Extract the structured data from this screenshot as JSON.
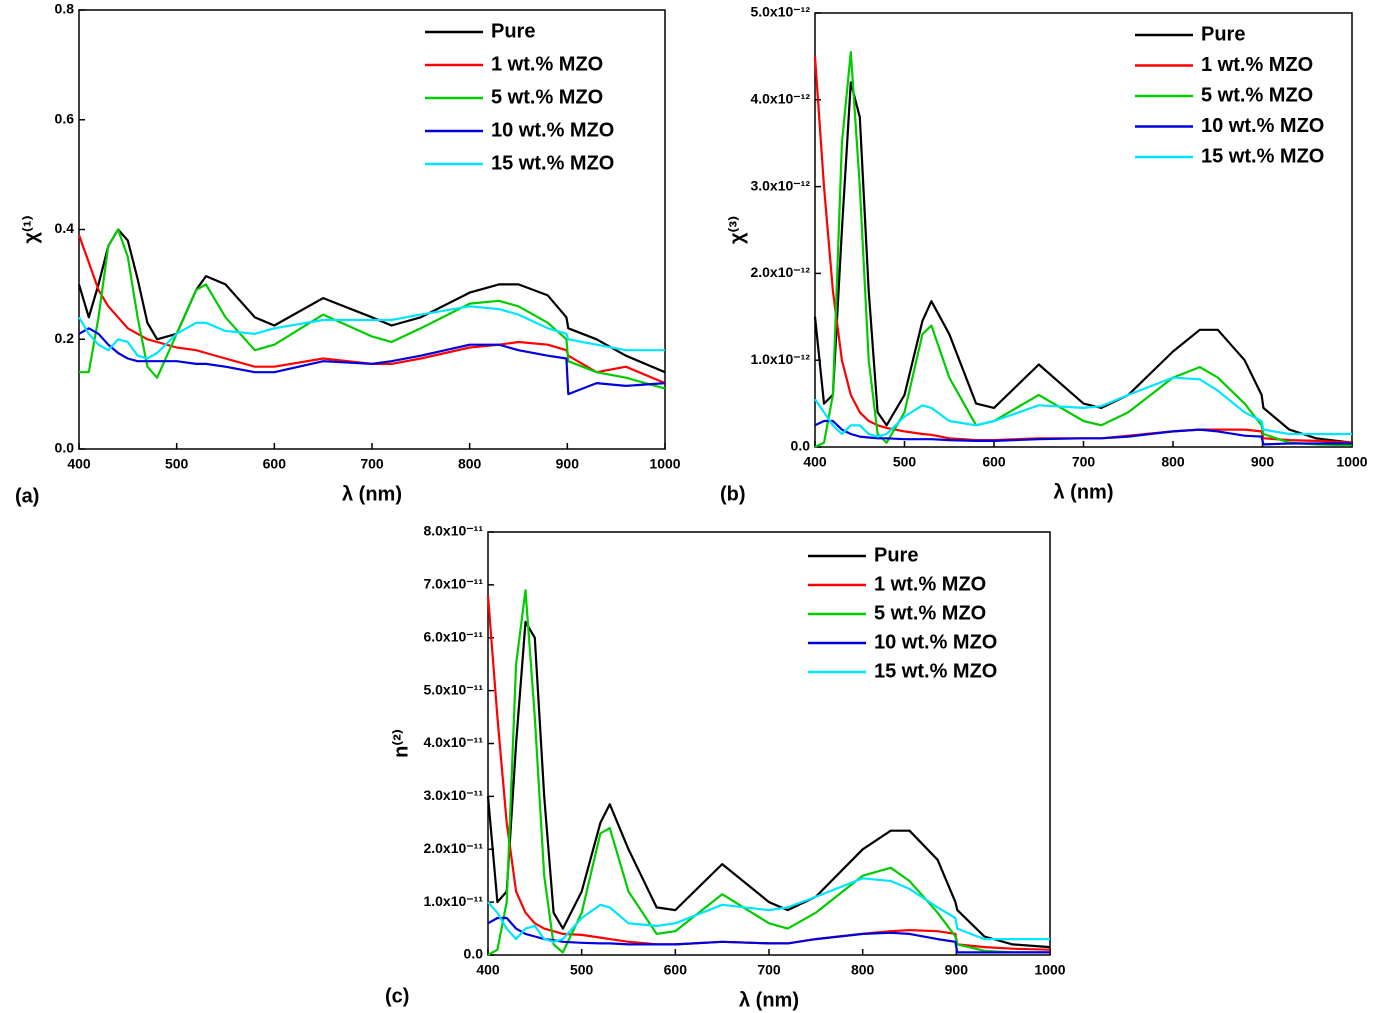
{
  "chart_data": [
    {
      "type": "line",
      "panel_label": "(a)",
      "xlabel": "λ (nm)",
      "ylabel": "χ⁽¹⁾",
      "legend": "upper right",
      "xlim": [
        400,
        1000
      ],
      "ylim": [
        0,
        0.8
      ],
      "xticks": [
        400,
        500,
        600,
        700,
        800,
        900,
        1000
      ],
      "yticks": [
        {
          "value": 0,
          "label": "0.0"
        },
        0.2,
        0.4,
        0.6,
        0.8
      ],
      "x": [
        400,
        410,
        420,
        430,
        440,
        450,
        460,
        470,
        480,
        500,
        520,
        530,
        550,
        580,
        600,
        650,
        700,
        720,
        750,
        800,
        830,
        850,
        880,
        899,
        901,
        930,
        960,
        1000
      ],
      "series": [
        {
          "name": "Pure",
          "color": "#000000",
          "values": [
            0.3,
            0.24,
            0.3,
            0.37,
            0.4,
            0.38,
            0.31,
            0.23,
            0.2,
            0.21,
            0.29,
            0.315,
            0.3,
            0.24,
            0.225,
            0.275,
            0.24,
            0.225,
            0.24,
            0.285,
            0.3,
            0.3,
            0.28,
            0.24,
            0.22,
            0.2,
            0.17,
            0.14
          ]
        },
        {
          "name": "1 wt.% MZO",
          "color": "#ff0000",
          "values": [
            0.39,
            0.34,
            0.29,
            0.26,
            0.24,
            0.22,
            0.21,
            0.2,
            0.195,
            0.185,
            0.18,
            0.175,
            0.165,
            0.15,
            0.15,
            0.165,
            0.155,
            0.155,
            0.165,
            0.185,
            0.19,
            0.195,
            0.19,
            0.18,
            0.17,
            0.14,
            0.15,
            0.12
          ]
        },
        {
          "name": "5 wt.% MZO",
          "color": "#00cc00",
          "values": [
            0.14,
            0.14,
            0.24,
            0.37,
            0.4,
            0.35,
            0.24,
            0.15,
            0.13,
            0.21,
            0.29,
            0.3,
            0.24,
            0.18,
            0.19,
            0.245,
            0.205,
            0.195,
            0.22,
            0.265,
            0.27,
            0.26,
            0.23,
            0.2,
            0.16,
            0.14,
            0.13,
            0.11
          ]
        },
        {
          "name": "10 wt.% MZO",
          "color": "#0000dd",
          "values": [
            0.21,
            0.22,
            0.21,
            0.19,
            0.175,
            0.165,
            0.16,
            0.16,
            0.16,
            0.16,
            0.155,
            0.155,
            0.15,
            0.14,
            0.14,
            0.16,
            0.155,
            0.16,
            0.17,
            0.19,
            0.19,
            0.18,
            0.17,
            0.165,
            0.1,
            0.12,
            0.115,
            0.12
          ]
        },
        {
          "name": "15 wt.% MZO",
          "color": "#00e5ff",
          "values": [
            0.24,
            0.21,
            0.19,
            0.18,
            0.2,
            0.195,
            0.17,
            0.165,
            0.175,
            0.21,
            0.23,
            0.23,
            0.215,
            0.21,
            0.22,
            0.235,
            0.235,
            0.235,
            0.245,
            0.26,
            0.255,
            0.245,
            0.22,
            0.21,
            0.2,
            0.19,
            0.18,
            0.18
          ]
        }
      ]
    },
    {
      "type": "line",
      "panel_label": "(b)",
      "xlabel": "λ (nm)",
      "ylabel": "χ⁽³⁾",
      "legend": "upper right",
      "xlim": [
        400,
        1000
      ],
      "ylim": [
        0,
        5e-12
      ],
      "xticks": [
        400,
        500,
        600,
        700,
        800,
        900,
        1000
      ],
      "yticks": [
        {
          "value": 0,
          "label": "0.0"
        },
        {
          "value": 1e-12,
          "label": "1.0x10⁻¹²"
        },
        {
          "value": 2e-12,
          "label": "2.0x10⁻¹²"
        },
        {
          "value": 3e-12,
          "label": "3.0x10⁻¹²"
        },
        {
          "value": 4e-12,
          "label": "4.0x10⁻¹²"
        },
        {
          "value": 5e-12,
          "label": "5.0x10⁻¹²"
        }
      ],
      "x": [
        400,
        410,
        420,
        430,
        440,
        450,
        460,
        470,
        480,
        500,
        520,
        530,
        550,
        580,
        600,
        650,
        700,
        720,
        750,
        800,
        830,
        850,
        880,
        899,
        901,
        930,
        960,
        1000
      ],
      "series": [
        {
          "name": "Pure",
          "color": "#000000",
          "values": [
            1.5e-12,
            5e-13,
            6e-13,
            2.5e-12,
            4.2e-12,
            3.8e-12,
            1.8e-12,
            4e-13,
            2.5e-13,
            6e-13,
            1.45e-12,
            1.68e-12,
            1.3e-12,
            5e-13,
            4.5e-13,
            9.5e-13,
            5e-13,
            4.5e-13,
            6e-13,
            1.1e-12,
            1.35e-12,
            1.35e-12,
            1e-12,
            6e-13,
            4.5e-13,
            2e-13,
            1e-13,
            5e-14
          ]
        },
        {
          "name": "1 wt.% MZO",
          "color": "#ff0000",
          "values": [
            4.5e-12,
            3e-12,
            1.8e-12,
            1e-12,
            6e-13,
            4e-13,
            3e-13,
            2.5e-13,
            2.2e-13,
            1.8e-13,
            1.5e-13,
            1.4e-13,
            1e-13,
            8e-14,
            8e-14,
            1e-13,
            1e-13,
            1e-13,
            1.3e-13,
            1.8e-13,
            2e-13,
            2e-13,
            2e-13,
            1.8e-13,
            1e-13,
            8e-14,
            7e-14,
            5e-14
          ]
        },
        {
          "name": "5 wt.% MZO",
          "color": "#00cc00",
          "values": [
            0,
            5e-14,
            6e-13,
            3.5e-12,
            4.55e-12,
            3e-12,
            1e-12,
            1.5e-13,
            5e-14,
            4e-13,
            1.3e-12,
            1.4e-12,
            8e-13,
            2.5e-13,
            3e-13,
            6e-13,
            3e-13,
            2.5e-13,
            4e-13,
            8e-13,
            9.2e-13,
            8e-13,
            5e-13,
            2.5e-13,
            1.5e-13,
            5e-14,
            3e-14,
            2e-14
          ]
        },
        {
          "name": "10 wt.% MZO",
          "color": "#0000dd",
          "values": [
            2.5e-13,
            3e-13,
            3e-13,
            2e-13,
            1.5e-13,
            1.2e-13,
            1.1e-13,
            1e-13,
            1e-13,
            9e-14,
            9e-14,
            9e-14,
            8e-14,
            7e-14,
            7e-14,
            9e-14,
            1e-13,
            1e-13,
            1.2e-13,
            1.8e-13,
            2e-13,
            1.8e-13,
            1.3e-13,
            1.2e-13,
            3e-14,
            4e-14,
            4e-14,
            4e-14
          ]
        },
        {
          "name": "15 wt.% MZO",
          "color": "#00e5ff",
          "values": [
            5.5e-13,
            4e-13,
            2.5e-13,
            1.5e-13,
            2.5e-13,
            2.5e-13,
            1.5e-13,
            1.2e-13,
            1.5e-13,
            3.5e-13,
            4.8e-13,
            4.5e-13,
            3e-13,
            2.5e-13,
            3e-13,
            4.8e-13,
            4.5e-13,
            4.7e-13,
            6e-13,
            8e-13,
            7.8e-13,
            6.5e-13,
            4e-13,
            3e-13,
            2e-13,
            1.5e-13,
            1.5e-13,
            1.5e-13
          ]
        }
      ]
    },
    {
      "type": "line",
      "panel_label": "(c)",
      "xlabel": "λ (nm)",
      "ylabel": "n⁽²⁾",
      "legend": "upper right",
      "xlim": [
        400,
        1000
      ],
      "ylim": [
        0,
        8e-11
      ],
      "xticks": [
        400,
        500,
        600,
        700,
        800,
        900,
        1000
      ],
      "yticks": [
        {
          "value": 0,
          "label": "0.0"
        },
        {
          "value": 1e-11,
          "label": "1.0x10⁻¹¹"
        },
        {
          "value": 2e-11,
          "label": "2.0x10⁻¹¹"
        },
        {
          "value": 3e-11,
          "label": "3.0x10⁻¹¹"
        },
        {
          "value": 4e-11,
          "label": "4.0x10⁻¹¹"
        },
        {
          "value": 5e-11,
          "label": "5.0x10⁻¹¹"
        },
        {
          "value": 6e-11,
          "label": "6.0x10⁻¹¹"
        },
        {
          "value": 7e-11,
          "label": "7.0x10⁻¹¹"
        },
        {
          "value": 8e-11,
          "label": "8.0x10⁻¹¹"
        }
      ],
      "x": [
        400,
        410,
        420,
        430,
        440,
        450,
        460,
        470,
        480,
        500,
        520,
        530,
        550,
        580,
        600,
        650,
        700,
        720,
        750,
        800,
        830,
        850,
        880,
        899,
        901,
        930,
        960,
        1000
      ],
      "series": [
        {
          "name": "Pure",
          "color": "#000000",
          "values": [
            3e-11,
            1e-11,
            1.2e-11,
            4e-11,
            6.3e-11,
            6e-11,
            3e-11,
            8e-12,
            5e-12,
            1.2e-11,
            2.5e-11,
            2.85e-11,
            2e-11,
            9e-12,
            8.5e-12,
            1.72e-11,
            1e-11,
            8.5e-12,
            1.1e-11,
            2e-11,
            2.35e-11,
            2.35e-11,
            1.8e-11,
            1e-11,
            8.5e-12,
            3.5e-12,
            2e-12,
            1.5e-12
          ]
        },
        {
          "name": "1 wt.% MZO",
          "color": "#ff0000",
          "values": [
            6.8e-11,
            4.5e-11,
            2.5e-11,
            1.2e-11,
            8e-12,
            6e-12,
            5e-12,
            4.5e-12,
            4e-12,
            3.8e-12,
            3.3e-12,
            3e-12,
            2.5e-12,
            2e-12,
            2e-12,
            2.5e-12,
            2.2e-12,
            2.2e-12,
            3e-12,
            4e-12,
            4.5e-12,
            4.7e-12,
            4.5e-12,
            4e-12,
            2e-12,
            1.5e-12,
            1.2e-12,
            1e-12
          ]
        },
        {
          "name": "5 wt.% MZO",
          "color": "#00cc00",
          "values": [
            0,
            1e-12,
            1e-11,
            5.5e-11,
            6.9e-11,
            4.5e-11,
            1.5e-11,
            2e-12,
            5e-13,
            8e-12,
            2.3e-11,
            2.4e-11,
            1.2e-11,
            4e-12,
            4.5e-12,
            1.15e-11,
            6e-12,
            5e-12,
            8e-12,
            1.5e-11,
            1.65e-11,
            1.4e-11,
            8e-12,
            3.5e-12,
            2e-12,
            8e-13,
            5e-13,
            5e-13
          ]
        },
        {
          "name": "10 wt.% MZO",
          "color": "#0000dd",
          "values": [
            6e-12,
            7e-12,
            7e-12,
            5e-12,
            4e-12,
            3.5e-12,
            3e-12,
            2.8e-12,
            2.5e-12,
            2.3e-12,
            2.2e-12,
            2.2e-12,
            2e-12,
            2e-12,
            2e-12,
            2.5e-12,
            2.2e-12,
            2.2e-12,
            3e-12,
            4e-12,
            4.2e-12,
            4e-12,
            3e-12,
            2.5e-12,
            5e-13,
            5e-13,
            5e-13,
            5e-13
          ]
        },
        {
          "name": "15 wt.% MZO",
          "color": "#00e5ff",
          "values": [
            1e-11,
            8e-12,
            5e-12,
            3e-12,
            5e-12,
            5.5e-12,
            3e-12,
            2.5e-12,
            3e-12,
            7e-12,
            9.5e-12,
            9e-12,
            6e-12,
            5.5e-12,
            6e-12,
            9.5e-12,
            8.5e-12,
            9e-12,
            1.1e-11,
            1.45e-11,
            1.4e-11,
            1.25e-11,
            9e-12,
            7e-12,
            5e-12,
            3e-12,
            3e-12,
            3e-12
          ]
        }
      ]
    }
  ]
}
